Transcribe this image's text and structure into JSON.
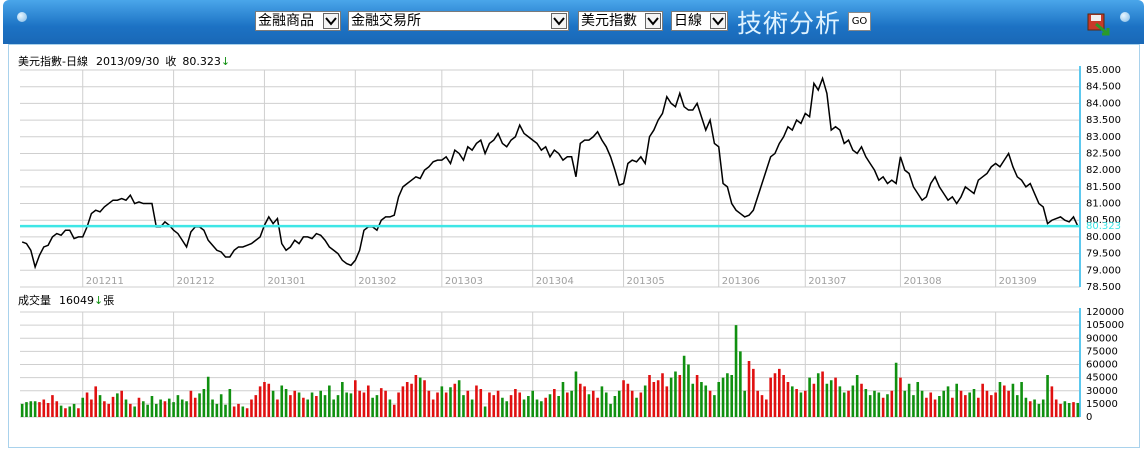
{
  "toolbar": {
    "product": "金融商品",
    "exchange": "金融交易所",
    "index": "美元指數",
    "period": "日線",
    "title": "技術分析",
    "go": "GO"
  },
  "chart_data": [
    {
      "type": "line",
      "title": "美元指數-日線",
      "date": "2013/09/30",
      "close_label": "收",
      "close": 80.323,
      "arrow": "↓",
      "categories": [
        null,
        null,
        null,
        null,
        null,
        null,
        null,
        null,
        null,
        null,
        null,
        null,
        null,
        null,
        "201211",
        null,
        null,
        null,
        null,
        null,
        null,
        null,
        null,
        null,
        null,
        null,
        null,
        null,
        null,
        null,
        null,
        null,
        null,
        null,
        null,
        "201212",
        null,
        null,
        null,
        null,
        null,
        null,
        null,
        null,
        null,
        null,
        null,
        null,
        null,
        null,
        null,
        null,
        null,
        null,
        null,
        null,
        "201301",
        null,
        null,
        null,
        null,
        null,
        null,
        null,
        null,
        null,
        null,
        null,
        null,
        null,
        null,
        null,
        null,
        null,
        null,
        null,
        null,
        "201302",
        null,
        null,
        null,
        null,
        null,
        null,
        null,
        null,
        null,
        null,
        null,
        null,
        null,
        null,
        null,
        null,
        null,
        null,
        null,
        "201303",
        null,
        null,
        null,
        null,
        null,
        null,
        null,
        null,
        null,
        null,
        null,
        null,
        null,
        null,
        null,
        null,
        null,
        null,
        null,
        null,
        "201304",
        null,
        null,
        null,
        null,
        null,
        null,
        null,
        null,
        null,
        null,
        null,
        null,
        null,
        null,
        null,
        null,
        null,
        null,
        null,
        null,
        "201305",
        null,
        null,
        null,
        null,
        null,
        null,
        null,
        null,
        null,
        null,
        null,
        null,
        null,
        null,
        null,
        null,
        null,
        null,
        null,
        null,
        null,
        "201306",
        null,
        null,
        null,
        null,
        null,
        null,
        null,
        null,
        null,
        null,
        null,
        null,
        null,
        null,
        null,
        null,
        null,
        null,
        null,
        "201307",
        null,
        null,
        null,
        null,
        null,
        null,
        null,
        null,
        null,
        null,
        null,
        null,
        null,
        null,
        null,
        null,
        null,
        null,
        null,
        null,
        null,
        "201308",
        null,
        null,
        null,
        null,
        null,
        null,
        null,
        null,
        null,
        null,
        null,
        null,
        null,
        null,
        null,
        null,
        null,
        null,
        null,
        null,
        null,
        "201309",
        null,
        null,
        null,
        null,
        null,
        null,
        null,
        null,
        null,
        null,
        null,
        null,
        null,
        null,
        null,
        null,
        null,
        null,
        null
      ],
      "series": [
        {
          "color": "#000000",
          "values": [
            79.85,
            79.8,
            79.6,
            79.1,
            79.45,
            79.7,
            79.75,
            80.0,
            80.1,
            80.05,
            80.2,
            80.2,
            79.95,
            80.0,
            80.0,
            80.3,
            80.7,
            80.8,
            80.75,
            80.9,
            81.0,
            81.1,
            81.1,
            81.15,
            81.1,
            81.25,
            81.0,
            81.05,
            81.0,
            81.0,
            81.0,
            80.3,
            80.3,
            80.45,
            80.35,
            80.2,
            80.1,
            79.9,
            79.7,
            80.15,
            80.3,
            80.3,
            80.2,
            79.9,
            79.75,
            79.6,
            79.55,
            79.4,
            79.4,
            79.6,
            79.7,
            79.7,
            79.75,
            79.8,
            79.9,
            80.0,
            80.35,
            80.6,
            80.4,
            80.55,
            79.8,
            79.6,
            79.7,
            79.9,
            79.8,
            80.0,
            80.0,
            79.95,
            80.1,
            80.05,
            79.9,
            79.7,
            79.6,
            79.5,
            79.3,
            79.2,
            79.15,
            79.3,
            79.6,
            80.2,
            80.3,
            80.3,
            80.2,
            80.5,
            80.6,
            80.6,
            80.65,
            81.2,
            81.5,
            81.6,
            81.7,
            81.8,
            81.75,
            82.0,
            82.1,
            82.25,
            82.3,
            82.3,
            82.4,
            82.2,
            82.6,
            82.5,
            82.3,
            82.7,
            82.6,
            82.8,
            82.9,
            82.5,
            82.8,
            82.9,
            83.1,
            82.8,
            82.7,
            82.9,
            83.0,
            83.35,
            83.1,
            83.0,
            82.9,
            82.8,
            82.6,
            82.7,
            82.4,
            82.6,
            82.5,
            82.3,
            82.4,
            82.4,
            81.8,
            82.8,
            82.9,
            82.9,
            83.0,
            83.15,
            82.9,
            82.7,
            82.4,
            82.0,
            81.55,
            81.6,
            82.2,
            82.3,
            82.25,
            82.4,
            82.2,
            83.0,
            83.2,
            83.5,
            83.7,
            84.2,
            84.0,
            83.9,
            84.3,
            83.9,
            83.8,
            83.8,
            84.0,
            83.6,
            83.2,
            83.5,
            82.8,
            82.7,
            81.6,
            81.5,
            81.0,
            80.8,
            80.7,
            80.6,
            80.65,
            80.8,
            81.2,
            81.6,
            82.0,
            82.4,
            82.5,
            82.8,
            83.0,
            83.3,
            83.2,
            83.5,
            83.4,
            83.7,
            83.6,
            84.6,
            84.4,
            84.75,
            84.3,
            83.2,
            83.3,
            83.2,
            82.8,
            82.9,
            82.6,
            82.5,
            82.7,
            82.4,
            82.2,
            82.0,
            81.7,
            81.8,
            81.6,
            81.7,
            81.6,
            82.4,
            82.0,
            81.9,
            81.5,
            81.3,
            81.1,
            81.2,
            81.6,
            81.8,
            81.5,
            81.3,
            81.1,
            81.2,
            81.0,
            81.2,
            81.5,
            81.4,
            81.3,
            81.7,
            81.8,
            81.9,
            82.1,
            82.2,
            82.1,
            82.3,
            82.5,
            82.1,
            81.8,
            81.7,
            81.5,
            81.6,
            81.3,
            81.0,
            80.9,
            80.4,
            80.5,
            80.55,
            80.6,
            80.5,
            80.45,
            80.6,
            80.323
          ]
        }
      ],
      "reference_color": "#3ee6e6",
      "ylim": [
        78.5,
        85
      ],
      "yticks": [
        {
          "value": 78.5,
          "label": "78.500"
        },
        {
          "value": 79,
          "label": "79.000"
        },
        {
          "value": 79.5,
          "label": "79.500"
        },
        {
          "value": 80,
          "label": "80.000"
        },
        {
          "value": 80.5,
          "label": "80.500"
        },
        {
          "value": 81,
          "label": "81.000"
        },
        {
          "value": 81.5,
          "label": "81.500"
        },
        {
          "value": 82,
          "label": "82.000"
        },
        {
          "value": 82.5,
          "label": "82.500"
        },
        {
          "value": 83,
          "label": "83.000"
        },
        {
          "value": 83.5,
          "label": "83.500"
        },
        {
          "value": 84,
          "label": "84.000"
        },
        {
          "value": 84.5,
          "label": "84.500"
        },
        {
          "value": 85,
          "label": "85.000"
        }
      ],
      "grid": true
    },
    {
      "type": "bar",
      "title": "成交量",
      "latest": 16049,
      "arrow": "↓",
      "unit": "張",
      "up_color": "#e01010",
      "down_color": "#109010",
      "values": [
        15000,
        17000,
        18000,
        18000,
        17000,
        20000,
        16000,
        25000,
        18000,
        13000,
        10000,
        12000,
        15000,
        10000,
        22000,
        28000,
        20000,
        35000,
        25000,
        18000,
        15000,
        23000,
        27000,
        30000,
        20000,
        15000,
        12000,
        22000,
        18000,
        14000,
        24000,
        15000,
        20000,
        18000,
        21000,
        17000,
        25000,
        20000,
        18000,
        30000,
        22000,
        27000,
        32000,
        46000,
        20000,
        15000,
        26000,
        14000,
        32000,
        12000,
        15000,
        12000,
        10000,
        20000,
        25000,
        35000,
        40000,
        38000,
        30000,
        20000,
        36000,
        32000,
        25000,
        30000,
        28000,
        22000,
        20000,
        28000,
        24000,
        30000,
        25000,
        36000,
        20000,
        25000,
        40000,
        28000,
        27000,
        42000,
        30000,
        28000,
        36000,
        22000,
        25000,
        33000,
        30000,
        20000,
        14000,
        28000,
        35000,
        40000,
        38000,
        48000,
        45000,
        42000,
        30000,
        20000,
        28000,
        35000,
        28000,
        34000,
        38000,
        42000,
        25000,
        30000,
        20000,
        36000,
        32000,
        12000,
        28000,
        25000,
        30000,
        22000,
        18000,
        25000,
        32000,
        28000,
        20000,
        24000,
        30000,
        20000,
        18000,
        22000,
        26000,
        32000,
        24000,
        40000,
        28000,
        30000,
        52000,
        38000,
        35000,
        26000,
        30000,
        22000,
        35000,
        28000,
        15000,
        24000,
        30000,
        42000,
        38000,
        30000,
        22000,
        28000,
        36000,
        48000,
        40000,
        42000,
        50000,
        35000,
        45000,
        52000,
        48000,
        70000,
        60000,
        38000,
        48000,
        40000,
        36000,
        30000,
        25000,
        40000,
        45000,
        50000,
        48000,
        105000,
        75000,
        30000,
        64000,
        55000,
        30000,
        25000,
        20000,
        45000,
        50000,
        55000,
        48000,
        40000,
        35000,
        32000,
        28000,
        30000,
        45000,
        38000,
        50000,
        52000,
        38000,
        42000,
        45000,
        35000,
        28000,
        30000,
        36000,
        48000,
        38000,
        32000,
        25000,
        30000,
        28000,
        22000,
        26000,
        30000,
        62000,
        45000,
        30000,
        38000,
        25000,
        40000,
        30000,
        22000,
        28000,
        20000,
        24000,
        30000,
        35000,
        22000,
        38000,
        30000,
        25000,
        28000,
        32000,
        22000,
        38000,
        30000,
        25000,
        28000,
        40000,
        36000,
        30000,
        38000,
        25000,
        40000,
        22000,
        18000,
        20000,
        15000,
        20000,
        48000,
        35000,
        20000,
        15000,
        18000,
        16000,
        17000,
        16049
      ],
      "ylim": [
        0,
        120000
      ],
      "yticks": [
        0,
        15000,
        30000,
        45000,
        60000,
        75000,
        90000,
        105000,
        120000
      ],
      "grid": true
    }
  ]
}
